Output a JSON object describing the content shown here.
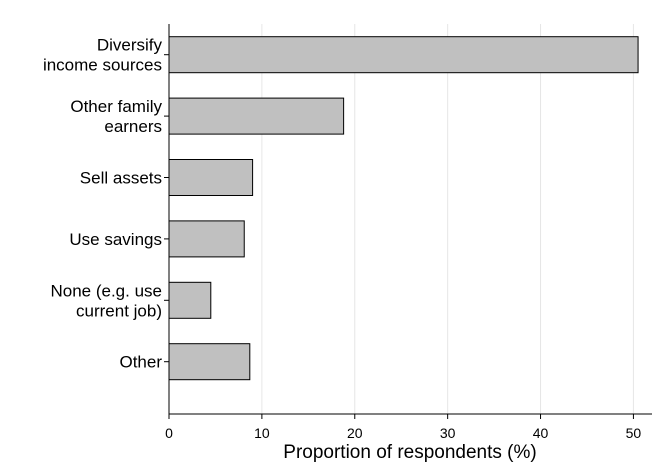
{
  "chart_data": {
    "type": "bar",
    "orientation": "horizontal",
    "categories": [
      [
        "Diversify",
        "income sources"
      ],
      [
        "Other family",
        "earners"
      ],
      [
        "Sell assets"
      ],
      [
        "Use savings"
      ],
      [
        "None (e.g. use",
        "current job)"
      ],
      [
        "Other"
      ]
    ],
    "values": [
      50.5,
      18.8,
      9.0,
      8.1,
      4.5,
      8.7
    ],
    "xlabel": "Proportion of respondents (%)",
    "ylabel": "",
    "xlim": [
      0,
      52
    ],
    "xticks": [
      "0",
      "10",
      "20",
      "30",
      "40",
      "50"
    ],
    "tick_values": [
      0,
      10,
      20,
      30,
      40,
      50
    ],
    "grid": true,
    "bar_color": "#c0c0c0",
    "bar_edge_color": "#000000",
    "grid_color": "#e6e6e6"
  }
}
